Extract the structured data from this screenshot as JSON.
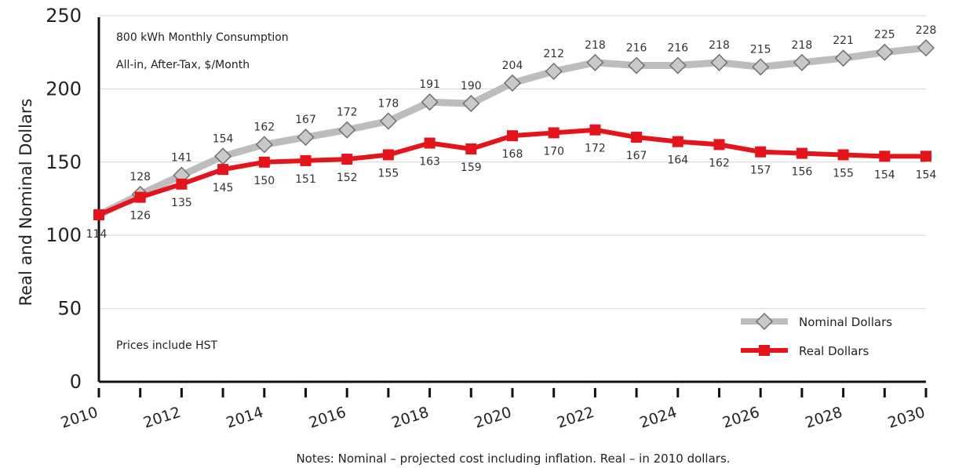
{
  "chart_data": {
    "type": "line",
    "xlabel": "",
    "ylabel": "Real and Nominal Dollars",
    "ylim": [
      0,
      250
    ],
    "xlim": [
      2010,
      2030
    ],
    "y_ticks": [
      "0",
      "50",
      "100",
      "150",
      "200",
      "250"
    ],
    "x_ticks": [
      "2010",
      "2012",
      "2014",
      "2016",
      "2018",
      "2020",
      "2022",
      "2024",
      "2026",
      "2028",
      "2030"
    ],
    "grid": "horizontal",
    "legend_position": "bottom-right",
    "x": [
      2010,
      2011,
      2012,
      2013,
      2014,
      2015,
      2016,
      2017,
      2018,
      2019,
      2020,
      2021,
      2022,
      2023,
      2024,
      2025,
      2026,
      2027,
      2028,
      2029,
      2030
    ],
    "series": [
      {
        "name": "Nominal Dollars",
        "color": "#bdbdbd",
        "marker_color": "#c9c9c9",
        "marker": "diamond",
        "values": [
          114,
          128,
          141,
          154,
          162,
          167,
          172,
          178,
          191,
          190,
          204,
          212,
          218,
          216,
          216,
          218,
          215,
          218,
          221,
          225,
          228
        ],
        "labels": [
          "",
          "128",
          "141",
          "154",
          "162",
          "167",
          "172",
          "178",
          "191",
          "190",
          "204",
          "212",
          "218",
          "216",
          "216",
          "218",
          "215",
          "218",
          "221",
          "225",
          "228"
        ]
      },
      {
        "name": "Real Dollars",
        "color": "#e3141b",
        "marker": "square",
        "values": [
          114,
          126,
          135,
          145,
          150,
          151,
          152,
          155,
          163,
          159,
          168,
          170,
          172,
          167,
          164,
          162,
          157,
          156,
          155,
          154,
          154
        ],
        "labels": [
          "114",
          "126",
          "135",
          "145",
          "150",
          "151",
          "152",
          "155",
          "163",
          "159",
          "168",
          "170",
          "172",
          "167",
          "164",
          "162",
          "157",
          "156",
          "155",
          "154",
          "154"
        ]
      }
    ],
    "annotations": {
      "line1": "800 kWh Monthly Consumption",
      "line2": "All-in, After-Tax, $/Month",
      "hst": "Prices include HST"
    },
    "notes": "Notes: Nominal – projected cost including inflation. Real – in 2010 dollars."
  }
}
